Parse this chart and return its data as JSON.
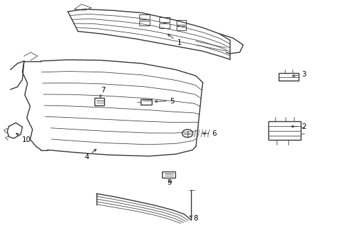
{
  "bg_color": "#ffffff",
  "line_color": "#333333",
  "label_color": "#000000",
  "figsize": [
    4.9,
    3.6
  ],
  "dpi": 100
}
